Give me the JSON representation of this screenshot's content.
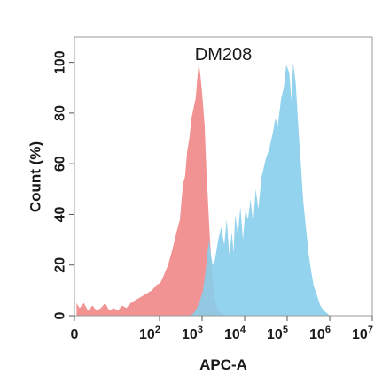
{
  "chart_data": {
    "type": "area",
    "title": "DM208",
    "xlabel": "APC-A",
    "ylabel": "Count  (%)",
    "x_scale": "log",
    "xlim": [
      0,
      7
    ],
    "ylim": [
      0,
      110
    ],
    "x_ticks": [
      {
        "value": 0,
        "label": "0"
      },
      {
        "value": 2,
        "base": "10",
        "exp": "2"
      },
      {
        "value": 3,
        "base": "10",
        "exp": "3"
      },
      {
        "value": 4,
        "base": "10",
        "exp": "4"
      },
      {
        "value": 5,
        "base": "10",
        "exp": "5"
      },
      {
        "value": 6,
        "base": "10",
        "exp": "6"
      },
      {
        "value": 7,
        "base": "10",
        "exp": "7"
      }
    ],
    "y_ticks": [
      {
        "value": 0,
        "label": "0"
      },
      {
        "value": 20,
        "label": "20"
      },
      {
        "value": 40,
        "label": "40"
      },
      {
        "value": 60,
        "label": "60"
      },
      {
        "value": 80,
        "label": "80"
      },
      {
        "value": 100,
        "label": "100"
      }
    ],
    "grid": false,
    "series": [
      {
        "color": "#f08080",
        "opacity": 0.85,
        "x": [
          0.05,
          0.12,
          0.22,
          0.32,
          0.42,
          0.52,
          0.62,
          0.72,
          0.82,
          0.92,
          1.02,
          1.12,
          1.22,
          1.32,
          1.42,
          1.52,
          1.62,
          1.72,
          1.82,
          1.92,
          2.02,
          2.1,
          2.2,
          2.3,
          2.4,
          2.48,
          2.55,
          2.6,
          2.65,
          2.7,
          2.75,
          2.8,
          2.85,
          2.88,
          2.92,
          2.96,
          3.0,
          3.03,
          3.06,
          3.1,
          3.14,
          3.18,
          3.22,
          3.26,
          3.3,
          3.35,
          3.4,
          3.45,
          3.55,
          3.65
        ],
        "y": [
          5,
          3,
          5,
          2,
          4,
          2,
          3,
          5,
          2,
          3,
          2,
          4,
          3,
          5,
          6,
          7,
          8,
          9,
          10,
          12,
          13,
          16,
          20,
          26,
          33,
          38,
          52,
          55,
          65,
          70,
          78,
          82,
          86,
          92,
          100,
          95,
          88,
          82,
          75,
          58,
          45,
          32,
          20,
          12,
          7,
          3,
          2,
          1,
          0,
          0
        ]
      },
      {
        "color": "#87ceeb",
        "opacity": 0.9,
        "x": [
          2.7,
          2.8,
          2.88,
          2.95,
          3.02,
          3.08,
          3.12,
          3.16,
          3.2,
          3.25,
          3.3,
          3.38,
          3.45,
          3.52,
          3.58,
          3.64,
          3.7,
          3.74,
          3.78,
          3.84,
          3.9,
          3.96,
          4.02,
          4.08,
          4.14,
          4.2,
          4.26,
          4.32,
          4.4,
          4.5,
          4.58,
          4.66,
          4.72,
          4.78,
          4.86,
          4.92,
          4.98,
          5.05,
          5.1,
          5.14,
          5.2,
          5.26,
          5.32,
          5.38,
          5.44,
          5.5,
          5.56,
          5.62,
          5.7,
          5.78,
          5.86,
          5.94,
          6.0
        ],
        "y": [
          0,
          1,
          3,
          6,
          10,
          17,
          24,
          30,
          25,
          20,
          22,
          30,
          35,
          28,
          38,
          24,
          33,
          25,
          40,
          32,
          43,
          30,
          42,
          38,
          46,
          36,
          50,
          42,
          55,
          62,
          66,
          72,
          78,
          75,
          86,
          90,
          99,
          96,
          85,
          100,
          92,
          75,
          60,
          45,
          35,
          25,
          18,
          12,
          8,
          4,
          2,
          1,
          0
        ]
      }
    ]
  }
}
